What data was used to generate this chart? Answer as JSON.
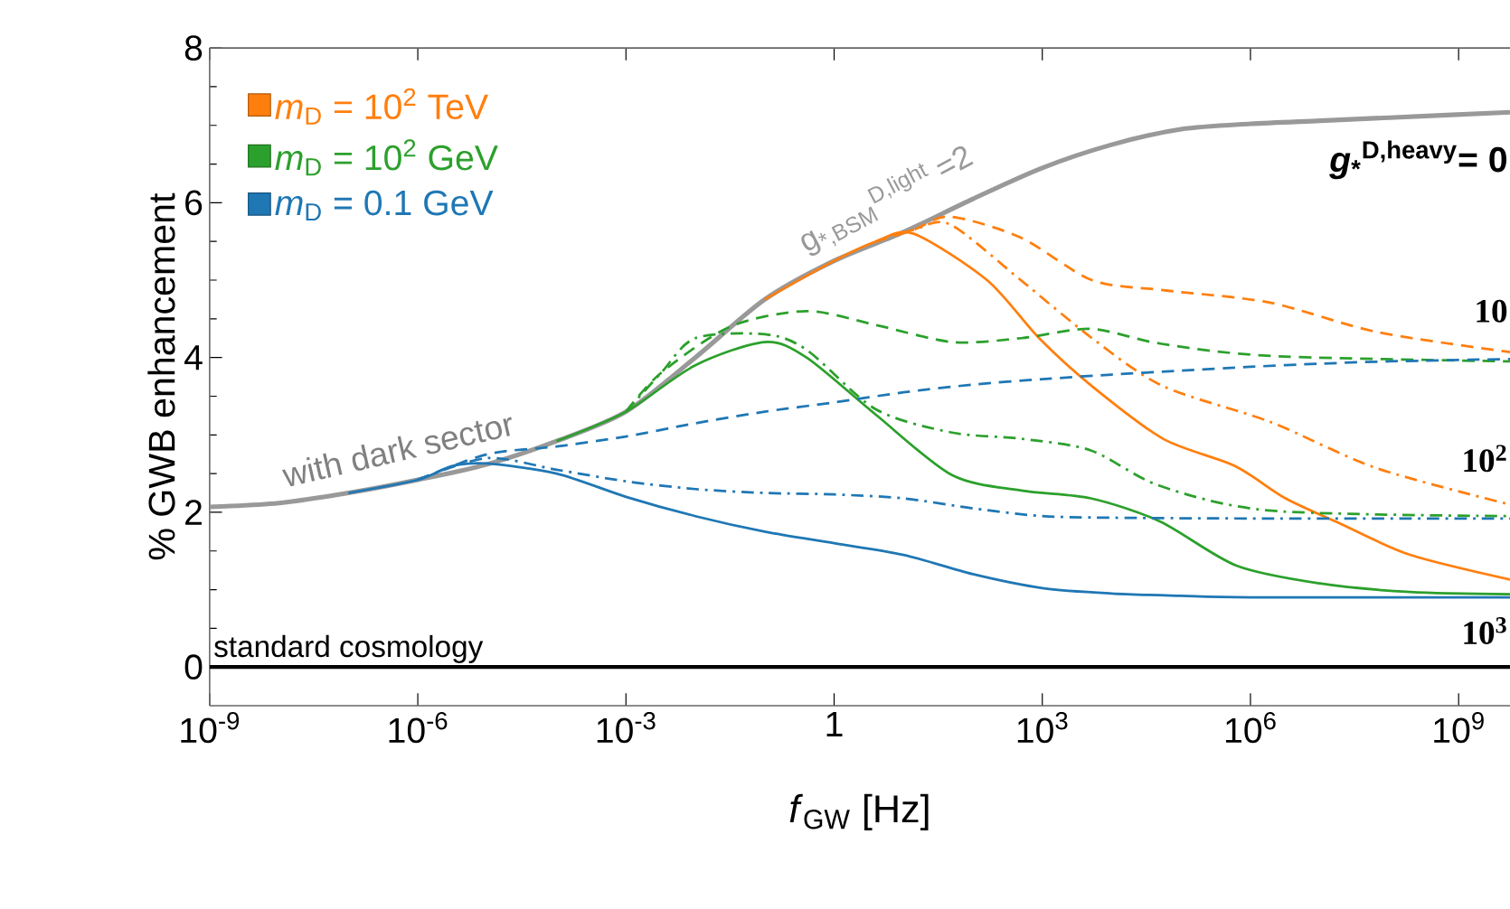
{
  "chart_data": {
    "type": "line",
    "xlabel": "*f*$_{GW}$ [Hz]",
    "ylabel": "% GWB enhancement",
    "log": "x",
    "legend": "top left",
    "xlim": [
      1e-09,
      5500000000.0
    ],
    "ylim": [
      -0.5,
      8
    ],
    "xticks": [
      {
        "value": 1e-09,
        "label": "10$^{-9}$"
      },
      {
        "value": 1e-06,
        "label": "10$^{-6}$"
      },
      {
        "value": 0.001,
        "label": "10$^{-3}$"
      },
      1,
      {
        "value": 1000.0,
        "label": "10$^{3}$"
      },
      {
        "value": 1000000.0,
        "label": "10$^{6}$"
      },
      {
        "value": 1000000000.0,
        "label": "10$^{9}$"
      }
    ],
    "yticks": [
      0,
      2,
      4,
      6,
      8
    ],
    "series": [
      {
        "color": "#999999",
        "line_style": "solid",
        "x": [
          1e-09,
          1e-08,
          1e-07,
          1e-06,
          1e-05,
          0.0001,
          0.001,
          0.01,
          0.1,
          1,
          10,
          100,
          1000.0,
          10000.0,
          100000.0,
          1000000.0,
          10000000.0,
          100000000.0,
          5500000000.0
        ],
        "values": [
          2.07,
          2.12,
          2.25,
          2.42,
          2.62,
          2.92,
          3.3,
          4.0,
          4.75,
          5.25,
          5.62,
          6.05,
          6.45,
          6.75,
          6.95,
          7.02,
          7.06,
          7.1,
          7.17
        ]
      },
      {
        "name": "*m*$_{D}$ = 10$^{2}$ TeV",
        "color": "#ff7f0e",
        "line_style": "solid",
        "x": [
          0.1,
          1,
          4,
          14,
          160,
          900,
          5200,
          55000.0,
          590000.0,
          3200000.0,
          20000000.0,
          200000000.0,
          5500000000.0
        ],
        "values": [
          4.75,
          5.25,
          5.5,
          5.6,
          5.0,
          4.25,
          3.63,
          2.95,
          2.6,
          2.18,
          1.85,
          1.45,
          1.13
        ]
      },
      {
        "color": "#ff7f0e",
        "line_style": "dashed",
        "x": [
          4,
          14,
          47,
          490,
          5200,
          55000.0,
          1900000.0,
          66000000.0,
          5500000000.0
        ],
        "values": [
          5.5,
          5.65,
          5.82,
          5.55,
          5.0,
          4.87,
          4.71,
          4.33,
          4.07
        ]
      },
      {
        "color": "#ff7f0e",
        "line_style": "dashdot",
        "x": [
          4,
          14,
          47,
          490,
          5200,
          55000.0,
          1900000.0,
          66000000.0,
          5500000000.0
        ],
        "values": [
          5.5,
          5.65,
          5.72,
          5.0,
          4.25,
          3.63,
          3.17,
          2.57,
          2.1
        ]
      },
      {
        "name": "*m*$_{D}$ = 10$^{2}$ GeV",
        "color": "#2ca02c",
        "line_style": "solid",
        "x": [
          0.0001,
          0.001,
          0.01,
          0.1,
          0.4,
          4,
          50,
          500,
          5000,
          50000.0,
          630000.0,
          10000000.0,
          200000000.0,
          5500000000.0
        ],
        "values": [
          2.92,
          3.3,
          3.9,
          4.2,
          4.0,
          3.26,
          2.48,
          2.28,
          2.18,
          1.88,
          1.31,
          1.08,
          0.97,
          0.94
        ]
      },
      {
        "color": "#2ca02c",
        "line_style": "dashed",
        "x": [
          0.001,
          0.0032,
          0.032,
          0.4,
          4,
          50,
          500,
          5000,
          50000.0,
          2000000.0,
          5500000000.0
        ],
        "values": [
          3.3,
          3.8,
          4.4,
          4.6,
          4.42,
          4.2,
          4.25,
          4.37,
          4.18,
          4.02,
          3.95
        ]
      },
      {
        "color": "#2ca02c",
        "line_style": "dashdot",
        "x": [
          0.001,
          0.0032,
          0.01,
          0.1,
          0.4,
          4,
          50,
          500,
          5000,
          50000.0,
          2000000.0,
          5500000000.0
        ],
        "values": [
          3.3,
          3.8,
          4.25,
          4.3,
          4.1,
          3.33,
          3.03,
          2.95,
          2.8,
          2.34,
          2.02,
          1.95
        ]
      },
      {
        "name": "*m*$_{D}$ = 0.1 GeV",
        "color": "#1f77b4",
        "line_style": "solid",
        "x": [
          1e-07,
          1e-06,
          3.2e-06,
          1e-05,
          0.0001,
          0.001,
          0.01,
          0.1,
          1,
          10,
          100,
          1000.0,
          10000.0,
          100000.0,
          1000000.0,
          5500000000.0
        ],
        "values": [
          2.25,
          2.42,
          2.6,
          2.63,
          2.5,
          2.2,
          1.95,
          1.75,
          1.6,
          1.45,
          1.2,
          1.02,
          0.95,
          0.92,
          0.9,
          0.9
        ]
      },
      {
        "color": "#1f77b4",
        "line_style": "dashed",
        "x": [
          1e-06,
          1e-05,
          0.0001,
          0.001,
          0.01,
          0.1,
          1,
          10,
          100,
          1000.0,
          10000.0,
          100000.0,
          1000000.0,
          10000000.0,
          100000000.0,
          5500000000.0
        ],
        "values": [
          2.42,
          2.75,
          2.85,
          2.98,
          3.15,
          3.3,
          3.42,
          3.55,
          3.65,
          3.72,
          3.78,
          3.83,
          3.88,
          3.92,
          3.95,
          3.98
        ]
      },
      {
        "color": "#1f77b4",
        "line_style": "dashdot",
        "x": [
          1e-06,
          1e-05,
          0.0001,
          0.001,
          0.01,
          0.1,
          1,
          10,
          100,
          1000.0,
          10000.0,
          1000000.0,
          5500000000.0
        ],
        "values": [
          2.42,
          2.7,
          2.55,
          2.4,
          2.3,
          2.25,
          2.23,
          2.18,
          2.05,
          1.95,
          1.93,
          1.92,
          1.92
        ]
      }
    ],
    "ref_lines": [
      {
        "axis": "y",
        "value": 0,
        "label": "standard cosmology",
        "color": "#000000"
      }
    ],
    "annotations": [
      "with dark  sector",
      "g$_{*,BSM}$$^{D,light}$ =2",
      "*g*$_{*}$$^{D,heavy}$= 0",
      "10",
      "10$^{2}$",
      "10$^{3}$"
    ]
  }
}
